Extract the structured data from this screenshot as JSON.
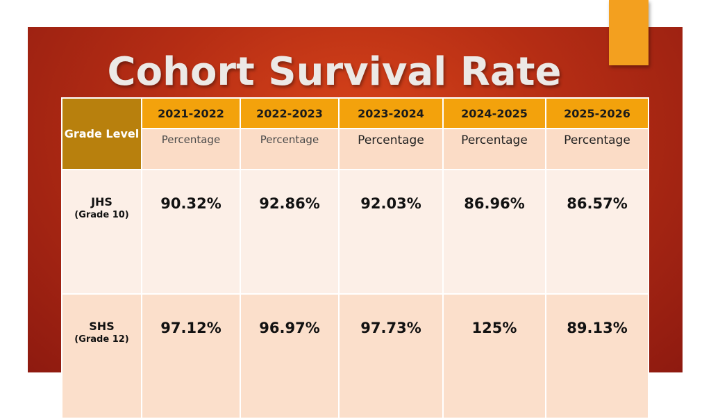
{
  "slide": {
    "title": "Cohort Survival Rate"
  },
  "table": {
    "grade_header": "Grade Level",
    "years": [
      "2021-2022",
      "2022-2023",
      "2023-2024",
      "2024-2025",
      "2025-2026"
    ],
    "subheaders": [
      "Percentage",
      "Percentage",
      "Percentage",
      "Percentage",
      "Percentage"
    ],
    "rows": [
      {
        "level": "JHS",
        "sub": "(Grade 10)",
        "values": [
          "90.32%",
          "92.86%",
          "92.03%",
          "86.96%",
          "86.57%"
        ]
      },
      {
        "level": "SHS",
        "sub": "(Grade 12)",
        "values": [
          "97.12%",
          "96.97%",
          "97.73%",
          "125%",
          "89.13%"
        ]
      }
    ]
  },
  "colors": {
    "background_red": "#b52d14",
    "accent_orange": "#f3a01f",
    "header_gold": "#b8800d",
    "header_orange": "#f3a20c"
  }
}
